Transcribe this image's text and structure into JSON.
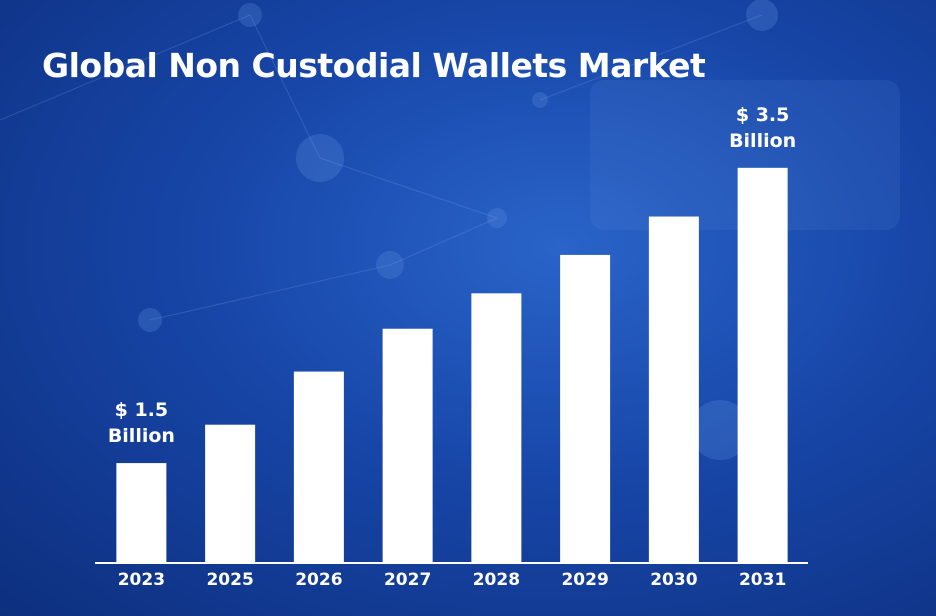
{
  "chart_data": {
    "type": "bar",
    "title": "Global Non Custodial Wallets Market",
    "categories": [
      "2023",
      "2025",
      "2026",
      "2027",
      "2028",
      "2029",
      "2030",
      "2031"
    ],
    "values": [
      1.5,
      1.76,
      2.12,
      2.41,
      2.65,
      2.91,
      3.17,
      3.5
    ],
    "value_labels": [
      "$ 1.5 Billion",
      null,
      null,
      null,
      null,
      null,
      null,
      "$ 3.5 Billion"
    ],
    "color": "#ffffff",
    "ylim": [
      0.83,
      4
    ]
  }
}
